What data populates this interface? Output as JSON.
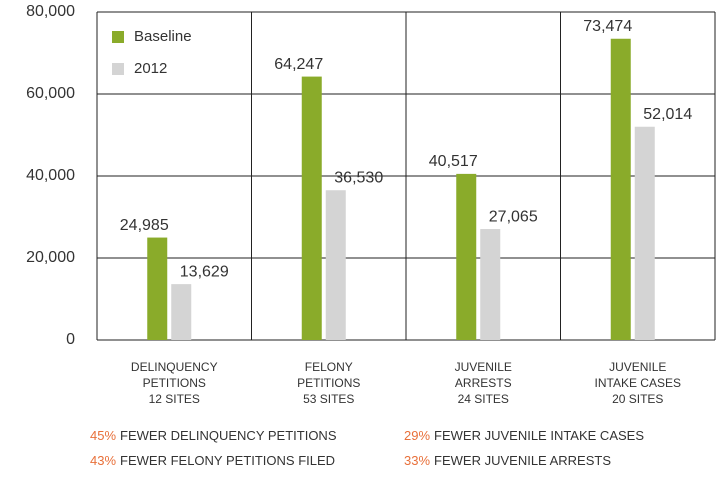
{
  "chart_data": {
    "type": "bar",
    "categories": [
      [
        "DELINQUENCY",
        "PETITIONS",
        "12 SITES"
      ],
      [
        "FELONY",
        "PETITIONS",
        "53 SITES"
      ],
      [
        "JUVENILE",
        "ARRESTS",
        "24 SITES"
      ],
      [
        "JUVENILE",
        "INTAKE CASES",
        "20 SITES"
      ]
    ],
    "series": [
      {
        "name": "Baseline",
        "color": "#8aab2a",
        "values": [
          24985,
          64247,
          40517,
          73474
        ],
        "value_labels": [
          "24,985",
          "64,247",
          "40,517",
          "73,474"
        ]
      },
      {
        "name": "2012",
        "color": "#d4d4d4",
        "values": [
          13629,
          36530,
          27065,
          52014
        ],
        "value_labels": [
          "13,629",
          "36,530",
          "27,065",
          "52,014"
        ]
      }
    ],
    "ylim": [
      0,
      80000
    ],
    "yticks": [
      0,
      {
        "value": 20000,
        "label": "20,000"
      },
      {
        "value": 40000,
        "label": "40,000"
      },
      {
        "value": 60000,
        "label": "60,000"
      },
      {
        "value": 80000,
        "label": "80,000"
      }
    ],
    "grid": true,
    "legend": "upper left",
    "annotations": [
      {
        "percent": "45%",
        "text": "FEWER DELINQUENCY PETITIONS"
      },
      {
        "percent": "29%",
        "text": "FEWER JUVENILE INTAKE CASES"
      },
      {
        "percent": "43%",
        "text": "FEWER FELONY PETITIONS FILED"
      },
      {
        "percent": "33%",
        "text": "FEWER JUVENILE ARRESTS"
      }
    ],
    "annotation_color": "#e8703a"
  }
}
